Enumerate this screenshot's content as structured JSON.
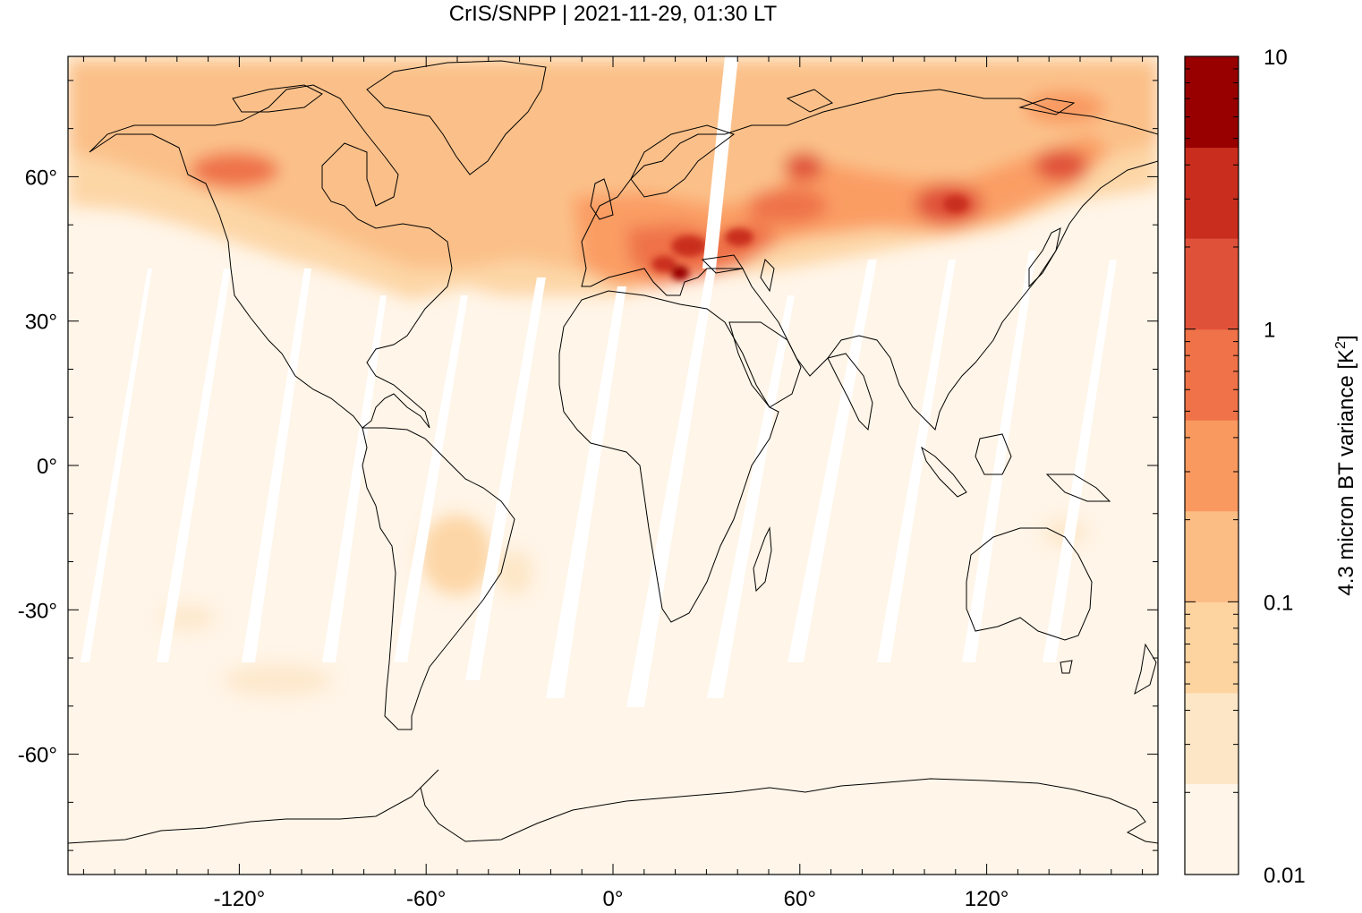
{
  "title": "CrIS/SNPP | 2021-11-29, 01:30 LT",
  "axes": {
    "x_ticks": [
      {
        "label": "-120°",
        "value": -120
      },
      {
        "label": "-60°",
        "value": -60
      },
      {
        "label": "0°",
        "value": 0
      },
      {
        "label": "60°",
        "value": 60
      },
      {
        "label": "120°",
        "value": 120
      }
    ],
    "y_ticks": [
      {
        "label": "60°",
        "value": 60
      },
      {
        "label": "30°",
        "value": 30
      },
      {
        "label": "0°",
        "value": 0
      },
      {
        "label": "-30°",
        "value": -30
      },
      {
        "label": "-60°",
        "value": -60
      }
    ],
    "lon_range": [
      -175,
      175
    ],
    "lat_range": [
      -85,
      85
    ]
  },
  "colorbar": {
    "label": "4.3 micron BT variance [K",
    "label_sup": "2",
    "label_end": "]",
    "scale": "log",
    "range": [
      0.01,
      10
    ],
    "tick_labels": [
      {
        "label": "10",
        "value": 10
      },
      {
        "label": "1",
        "value": 1
      },
      {
        "label": "0.1",
        "value": 0.1
      },
      {
        "label": "0.01",
        "value": 0.01
      }
    ],
    "colors": [
      "#fff5e8",
      "#fde6c6",
      "#fdd3a0",
      "#fcbd85",
      "#f99960",
      "#ef7248",
      "#e0513a",
      "#c92d1e",
      "#980000"
    ]
  }
}
